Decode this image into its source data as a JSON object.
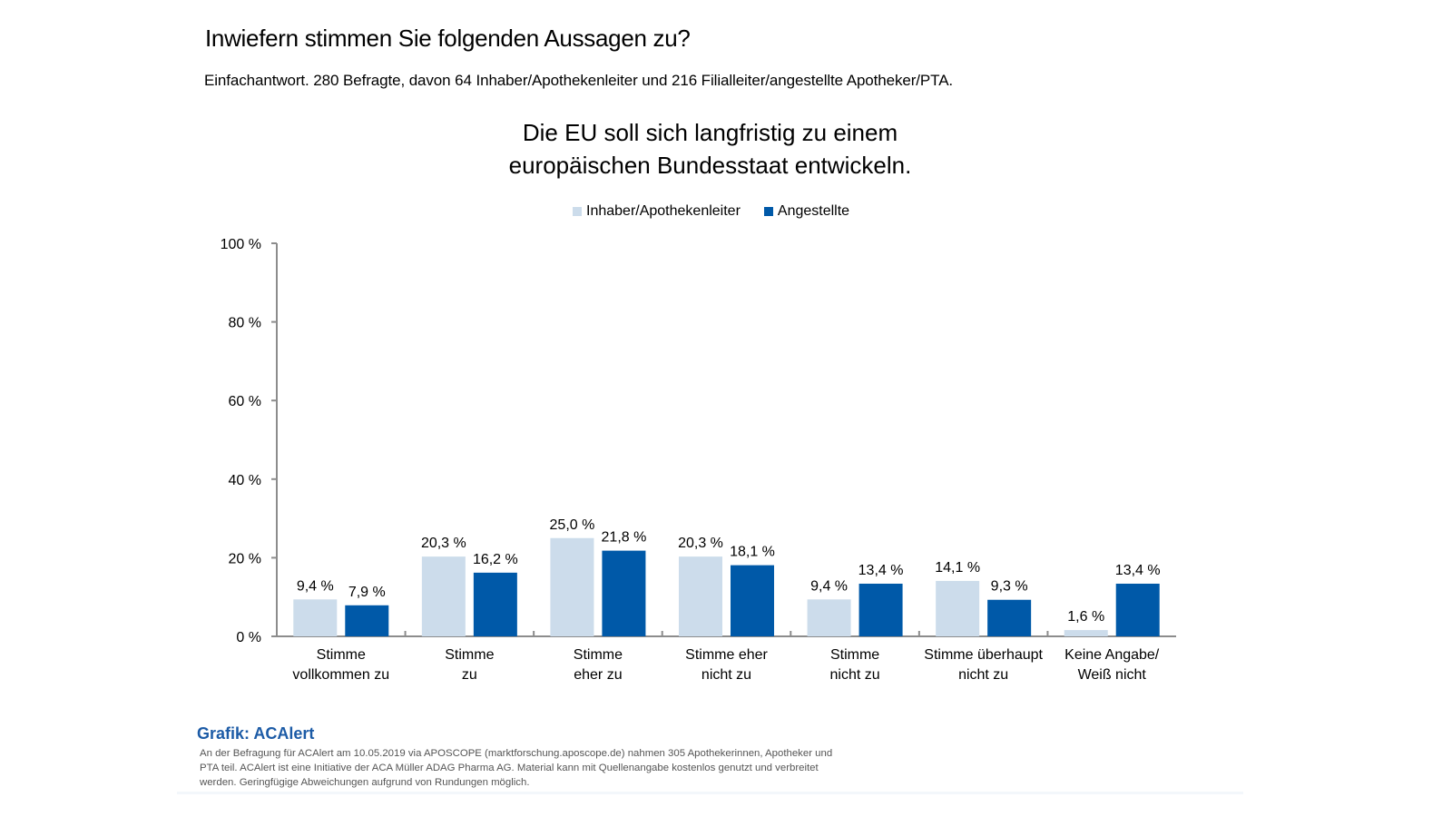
{
  "header": {
    "question": "Inwiefern stimmen Sie folgenden Aussagen zu?",
    "subtitle": "Einfachantwort. 280 Befragte, davon 64 Inhaber/Apothekenleiter und 216 Filialleiter/angestellte Apotheker/PTA."
  },
  "colors": {
    "inhaber": "#CCDCEB",
    "angestellte": "#0059A8",
    "axis": "#8C8C8C",
    "credit": "#1C5BA6"
  },
  "chart_data": {
    "type": "bar",
    "title_lines": [
      "Die EU soll sich langfristig zu einem",
      "europäischen Bundesstaat entwickeln."
    ],
    "categories": [
      [
        "Stimme",
        "vollkommen zu"
      ],
      [
        "Stimme",
        "zu"
      ],
      [
        "Stimme",
        "eher zu"
      ],
      [
        "Stimme eher",
        "nicht zu"
      ],
      [
        "Stimme",
        "nicht zu"
      ],
      [
        "Stimme überhaupt",
        "nicht zu"
      ],
      [
        "Keine Angabe/",
        "Weiß nicht"
      ]
    ],
    "series": [
      {
        "name": "Inhaber/Apothekenleiter",
        "values": [
          9.4,
          20.3,
          25.0,
          20.3,
          9.4,
          14.1,
          1.6
        ],
        "labels": [
          "9,4 %",
          "20,3 %",
          "25,0 %",
          "20,3 %",
          "9,4 %",
          "14,1 %",
          "1,6 %"
        ]
      },
      {
        "name": "Angestellte",
        "values": [
          7.9,
          16.2,
          21.8,
          18.1,
          13.4,
          9.3,
          13.4
        ],
        "labels": [
          "7,9 %",
          "16,2 %",
          "21,8 %",
          "18,1 %",
          "13,4 %",
          "9,3 %",
          "13,4 %"
        ]
      }
    ],
    "ylim": [
      0,
      100
    ],
    "yticks": [
      0,
      20,
      40,
      60,
      80,
      100
    ],
    "ytick_labels": [
      "0 %",
      "20 %",
      "40 %",
      "60 %",
      "80 %",
      "100 %"
    ],
    "xlabel": "",
    "ylabel": "",
    "grid": false,
    "legend_position": "top-center"
  },
  "footer": {
    "credit": "Grafik: ACAlert",
    "note": "An der Befragung für ACAlert am 10.05.2019 via APOSCOPE (marktforschung.aposcope.de) nahmen 305 Apothekerinnen, Apotheker und PTA teil. ACAlert ist eine Initiative der ACA Müller ADAG Pharma AG. Material kann mit Quellenangabe kostenlos genutzt und verbreitet werden. Geringfügige Abweichungen aufgrund von Rundungen möglich."
  }
}
